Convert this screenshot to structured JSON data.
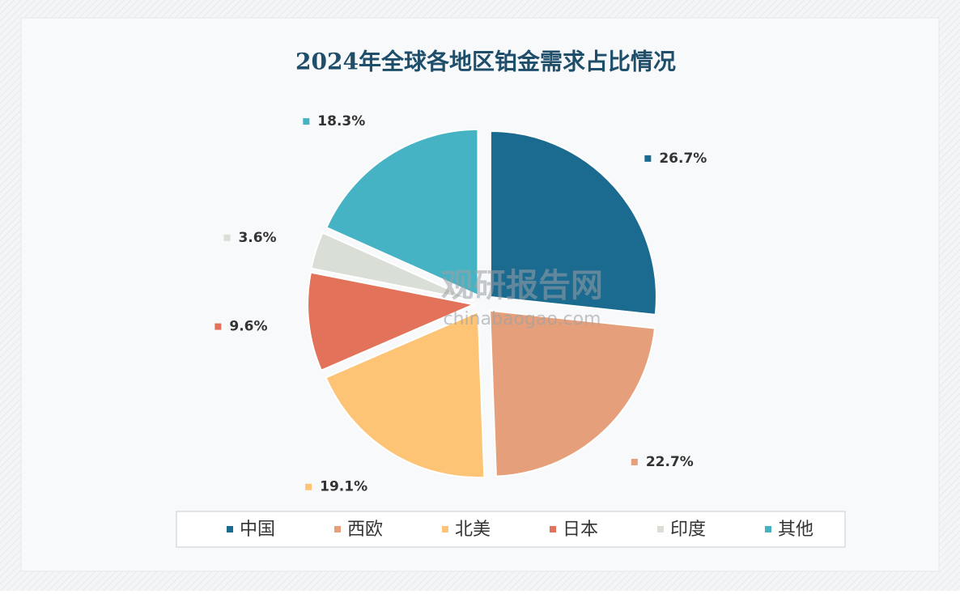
{
  "chart_data": {
    "type": "pie",
    "title": "2024年全球各地区铂金需求占比情况",
    "categories": [
      "中国",
      "西欧",
      "北美",
      "日本",
      "印度",
      "其他"
    ],
    "values": [
      26.7,
      22.7,
      19.1,
      9.6,
      3.6,
      18.3
    ],
    "value_labels": [
      "26.7%",
      "22.7%",
      "19.1%",
      "9.6%",
      "3.6%",
      "18.3%"
    ],
    "colors": [
      "#1b6a8f",
      "#e5a07b",
      "#fdc476",
      "#e2735a",
      "#d9ded6",
      "#46b3c5"
    ],
    "legend": "bottom",
    "watermark": {
      "name": "观研报告网",
      "url": "chinabaogao.com"
    }
  }
}
